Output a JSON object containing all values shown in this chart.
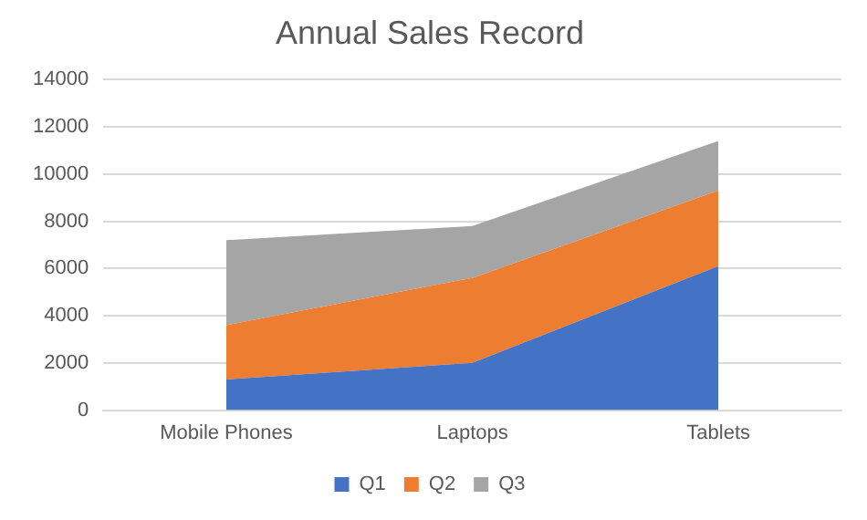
{
  "chart_data": {
    "type": "area",
    "title": "Annual Sales Record",
    "categories": [
      "Mobile Phones",
      "Laptops",
      "Tablets"
    ],
    "stacked": true,
    "series": [
      {
        "name": "Q1",
        "color": "#4472c4",
        "values": [
          1300,
          2000,
          6100
        ]
      },
      {
        "name": "Q2",
        "color": "#ed7d31",
        "values": [
          2300,
          3600,
          3200
        ]
      },
      {
        "name": "Q3",
        "color": "#a5a5a5",
        "values": [
          3600,
          2200,
          2100
        ]
      }
    ],
    "ylim": [
      0,
      14000
    ],
    "yticks": [
      0,
      2000,
      4000,
      6000,
      8000,
      10000,
      12000,
      14000
    ],
    "grid": "y",
    "legend": "bottom"
  }
}
